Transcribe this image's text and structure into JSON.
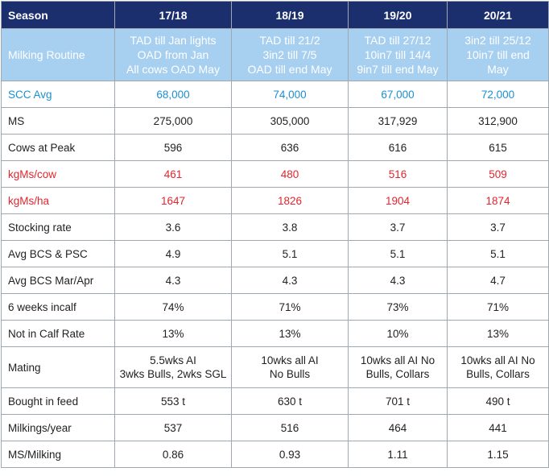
{
  "header": {
    "label": "Season",
    "seasons": [
      "17/18",
      "18/19",
      "19/20",
      "20/21"
    ]
  },
  "routine": {
    "label": "Milking Routine",
    "values": [
      "TAD till Jan lights\nOAD from Jan\nAll cows OAD May",
      "TAD till 21/2\n3in2 till 7/5\nOAD till end May",
      "TAD till 27/12\n10in7 till 14/4\n9in7 till end May",
      "3in2 till 25/12\n10in7 till end\nMay"
    ]
  },
  "rows": [
    {
      "label": "SCC Avg",
      "values": [
        "68,000",
        "74,000",
        "67,000",
        "72,000"
      ]
    },
    {
      "label": "MS",
      "values": [
        "275,000",
        "305,000",
        "317,929",
        "312,900"
      ]
    },
    {
      "label": "Cows at Peak",
      "values": [
        "596",
        "636",
        "616",
        "615"
      ]
    },
    {
      "label": "kgMs/cow",
      "values": [
        "461",
        "480",
        "516",
        "509"
      ]
    },
    {
      "label": "kgMs/ha",
      "values": [
        "1647",
        "1826",
        "1904",
        "1874"
      ]
    },
    {
      "label": "Stocking rate",
      "values": [
        "3.6",
        "3.8",
        "3.7",
        "3.7"
      ]
    },
    {
      "label": "Avg BCS & PSC",
      "values": [
        "4.9",
        "5.1",
        "5.1",
        "5.1"
      ]
    },
    {
      "label": "Avg BCS Mar/Apr",
      "values": [
        "4.3",
        "4.3",
        "4.3",
        "4.7"
      ]
    },
    {
      "label": "6 weeks incalf",
      "values": [
        "74%",
        "71%",
        "73%",
        "71%"
      ]
    },
    {
      "label": "Not in Calf Rate",
      "values": [
        "13%",
        "13%",
        "10%",
        "13%"
      ]
    },
    {
      "label": "Mating",
      "values": [
        "5.5wks AI\n3wks Bulls, 2wks SGL",
        "10wks all AI\nNo Bulls",
        "10wks all AI No\nBulls, Collars",
        "10wks all AI No\nBulls, Collars"
      ]
    },
    {
      "label": "Bought in feed",
      "values": [
        "553 t",
        "630 t",
        "701 t",
        "490 t"
      ]
    },
    {
      "label": "Milkings/year",
      "values": [
        "537",
        "516",
        "464",
        "441"
      ]
    },
    {
      "label": "MS/Milking",
      "values": [
        "0.86",
        "0.93",
        "1.11",
        "1.15"
      ]
    }
  ],
  "colors": {
    "header_bg": "#1b2e6e",
    "routine_bg": "#a7cff0",
    "scc_text": "#1a8fd0",
    "highlight_text": "#e0262e"
  }
}
